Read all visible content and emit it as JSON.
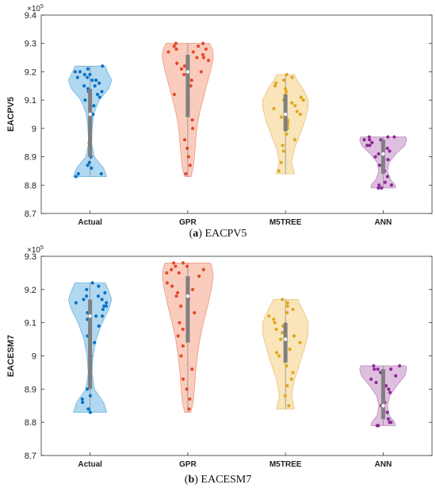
{
  "captions": [
    {
      "letter": "a",
      "text": "EACPV5"
    },
    {
      "letter": "b",
      "text": "EACESM7"
    }
  ],
  "colors": {
    "Actual": {
      "fill": "#a9d4ef",
      "edge": "#6fb3de",
      "dot": "#0c72c4"
    },
    "GPR": {
      "fill": "#f9c7b6",
      "edge": "#e79a80",
      "dot": "#e34a2a"
    },
    "M5TREE": {
      "fill": "#fae2b2",
      "edge": "#e8c07a",
      "dot": "#e0a81a"
    },
    "ANN": {
      "fill": "#dcb8dc",
      "edge": "#b889b8",
      "dot": "#8a2b95"
    }
  },
  "chart_data": [
    {
      "type": "violin",
      "ylabel": "EACPV5",
      "exponent_label": "×10",
      "exponent_power": "5",
      "ylim": [
        8.7,
        9.4
      ],
      "yticks": [
        "8.7",
        "8.8",
        "8.9",
        "9",
        "9.1",
        "9.2",
        "9.3",
        "9.4"
      ],
      "categories": [
        "Actual",
        "GPR",
        "M5TREE",
        "ANN"
      ],
      "series": [
        {
          "name": "Actual",
          "min": 8.83,
          "max": 9.22,
          "median": 9.05,
          "q1": 8.9,
          "q3": 9.14,
          "density": [
            [
              8.83,
              0.55
            ],
            [
              8.86,
              0.45
            ],
            [
              8.9,
              0.14
            ],
            [
              8.95,
              0.05
            ],
            [
              9.0,
              0.07
            ],
            [
              9.05,
              0.12
            ],
            [
              9.1,
              0.3
            ],
            [
              9.14,
              0.62
            ],
            [
              9.17,
              0.72
            ],
            [
              9.2,
              0.58
            ],
            [
              9.22,
              0.5
            ]
          ],
          "points": [
            8.83,
            8.84,
            8.84,
            8.86,
            8.87,
            8.88,
            8.9,
            8.95,
            9.0,
            9.03,
            9.05,
            9.08,
            9.1,
            9.11,
            9.12,
            9.13,
            9.13,
            9.14,
            9.15,
            9.15,
            9.16,
            9.17,
            9.17,
            9.18,
            9.18,
            9.19,
            9.19,
            9.2,
            9.2,
            9.21,
            9.22
          ]
        },
        {
          "name": "GPR",
          "min": 8.83,
          "max": 9.3,
          "median": 9.2,
          "q1": 9.04,
          "q3": 9.26,
          "density": [
            [
              8.83,
              0.1
            ],
            [
              8.86,
              0.18
            ],
            [
              8.9,
              0.22
            ],
            [
              8.95,
              0.26
            ],
            [
              9.0,
              0.3
            ],
            [
              9.05,
              0.38
            ],
            [
              9.1,
              0.5
            ],
            [
              9.15,
              0.62
            ],
            [
              9.2,
              0.75
            ],
            [
              9.25,
              0.85
            ],
            [
              9.28,
              0.82
            ],
            [
              9.3,
              0.72
            ]
          ],
          "points": [
            8.84,
            8.87,
            8.9,
            8.93,
            8.96,
            9.0,
            9.03,
            9.05,
            9.08,
            9.1,
            9.12,
            9.15,
            9.17,
            9.19,
            9.2,
            9.21,
            9.22,
            9.23,
            9.24,
            9.25,
            9.25,
            9.26,
            9.27,
            9.27,
            9.28,
            9.28,
            9.29,
            9.29,
            9.3,
            9.3
          ]
        },
        {
          "name": "M5TREE",
          "min": 8.84,
          "max": 9.19,
          "median": 9.05,
          "q1": 8.99,
          "q3": 9.12,
          "density": [
            [
              8.84,
              0.3
            ],
            [
              8.88,
              0.2
            ],
            [
              8.93,
              0.3
            ],
            [
              8.97,
              0.45
            ],
            [
              9.02,
              0.62
            ],
            [
              9.07,
              0.75
            ],
            [
              9.1,
              0.76
            ],
            [
              9.14,
              0.58
            ],
            [
              9.17,
              0.38
            ],
            [
              9.19,
              0.3
            ]
          ],
          "points": [
            8.85,
            8.88,
            8.92,
            8.94,
            8.96,
            8.98,
            9.0,
            9.01,
            9.02,
            9.03,
            9.04,
            9.05,
            9.06,
            9.07,
            9.08,
            9.09,
            9.1,
            9.1,
            9.11,
            9.12,
            9.13,
            9.14,
            9.15,
            9.16,
            9.17,
            9.18,
            9.19
          ]
        },
        {
          "name": "ANN",
          "min": 8.79,
          "max": 8.97,
          "median": 8.91,
          "q1": 8.84,
          "q3": 8.96,
          "density": [
            [
              8.79,
              0.4
            ],
            [
              8.8,
              0.4
            ],
            [
              8.82,
              0.24
            ],
            [
              8.85,
              0.14
            ],
            [
              8.88,
              0.2
            ],
            [
              8.91,
              0.42
            ],
            [
              8.94,
              0.72
            ],
            [
              8.96,
              0.78
            ],
            [
              8.97,
              0.75
            ]
          ],
          "points": [
            8.79,
            8.79,
            8.8,
            8.8,
            8.81,
            8.83,
            8.85,
            8.87,
            8.89,
            8.9,
            8.91,
            8.92,
            8.93,
            8.94,
            8.94,
            8.95,
            8.95,
            8.96,
            8.96,
            8.96,
            8.97,
            8.97,
            8.97
          ]
        }
      ]
    },
    {
      "type": "violin",
      "ylabel": "EACESM7",
      "exponent_label": "×10",
      "exponent_power": "5",
      "ylim": [
        8.7,
        9.3
      ],
      "yticks": [
        "8.7",
        "8.8",
        "8.9",
        "9",
        "9.1",
        "9.2",
        "9.3"
      ],
      "categories": [
        "Actual",
        "GPR",
        "M5TREE",
        "ANN"
      ],
      "series": [
        {
          "name": "Actual",
          "min": 8.83,
          "max": 9.22,
          "median": 9.12,
          "q1": 8.9,
          "q3": 9.17,
          "density": [
            [
              8.83,
              0.55
            ],
            [
              8.86,
              0.45
            ],
            [
              8.9,
              0.14
            ],
            [
              8.95,
              0.06
            ],
            [
              9.0,
              0.1
            ],
            [
              9.05,
              0.2
            ],
            [
              9.1,
              0.4
            ],
            [
              9.14,
              0.62
            ],
            [
              9.17,
              0.72
            ],
            [
              9.2,
              0.6
            ],
            [
              9.22,
              0.5
            ]
          ],
          "points": [
            8.83,
            8.84,
            8.84,
            8.86,
            8.87,
            8.88,
            8.9,
            8.95,
            9.0,
            9.04,
            9.06,
            9.09,
            9.11,
            9.12,
            9.12,
            9.13,
            9.14,
            9.15,
            9.15,
            9.16,
            9.16,
            9.17,
            9.17,
            9.18,
            9.18,
            9.19,
            9.2,
            9.21,
            9.22
          ]
        },
        {
          "name": "GPR",
          "min": 8.83,
          "max": 9.28,
          "median": 9.18,
          "q1": 9.04,
          "q3": 9.24,
          "density": [
            [
              8.83,
              0.1
            ],
            [
              8.86,
              0.18
            ],
            [
              8.9,
              0.22
            ],
            [
              8.95,
              0.26
            ],
            [
              9.0,
              0.32
            ],
            [
              9.05,
              0.4
            ],
            [
              9.1,
              0.52
            ],
            [
              9.15,
              0.66
            ],
            [
              9.2,
              0.78
            ],
            [
              9.24,
              0.85
            ],
            [
              9.27,
              0.8
            ],
            [
              9.28,
              0.75
            ]
          ],
          "points": [
            8.84,
            8.87,
            8.9,
            8.93,
            8.96,
            9.0,
            9.03,
            9.06,
            9.08,
            9.1,
            9.13,
            9.15,
            9.17,
            9.18,
            9.19,
            9.2,
            9.21,
            9.22,
            9.23,
            9.24,
            9.25,
            9.25,
            9.26,
            9.26,
            9.27,
            9.27,
            9.28,
            9.28
          ]
        },
        {
          "name": "M5TREE",
          "min": 8.84,
          "max": 9.17,
          "median": 9.05,
          "q1": 8.98,
          "q3": 9.1,
          "density": [
            [
              8.84,
              0.3
            ],
            [
              8.88,
              0.2
            ],
            [
              8.93,
              0.3
            ],
            [
              8.97,
              0.45
            ],
            [
              9.02,
              0.62
            ],
            [
              9.06,
              0.74
            ],
            [
              9.1,
              0.76
            ],
            [
              9.13,
              0.62
            ],
            [
              9.16,
              0.45
            ],
            [
              9.17,
              0.4
            ]
          ],
          "points": [
            8.85,
            8.88,
            8.91,
            8.93,
            8.95,
            8.97,
            8.99,
            9.0,
            9.01,
            9.02,
            9.03,
            9.04,
            9.05,
            9.06,
            9.07,
            9.08,
            9.09,
            9.1,
            9.11,
            9.12,
            9.13,
            9.14,
            9.15,
            9.16,
            9.17
          ]
        },
        {
          "name": "ANN",
          "min": 8.79,
          "max": 8.97,
          "median": 8.85,
          "q1": 8.81,
          "q3": 8.96,
          "density": [
            [
              8.79,
              0.4
            ],
            [
              8.8,
              0.38
            ],
            [
              8.82,
              0.2
            ],
            [
              8.85,
              0.14
            ],
            [
              8.88,
              0.22
            ],
            [
              8.91,
              0.45
            ],
            [
              8.94,
              0.72
            ],
            [
              8.96,
              0.78
            ],
            [
              8.97,
              0.75
            ]
          ],
          "points": [
            8.79,
            8.79,
            8.8,
            8.8,
            8.81,
            8.83,
            8.85,
            8.86,
            8.88,
            8.89,
            8.9,
            8.91,
            8.92,
            8.93,
            8.94,
            8.95,
            8.95,
            8.96,
            8.96,
            8.96,
            8.97,
            8.97
          ]
        }
      ]
    }
  ]
}
